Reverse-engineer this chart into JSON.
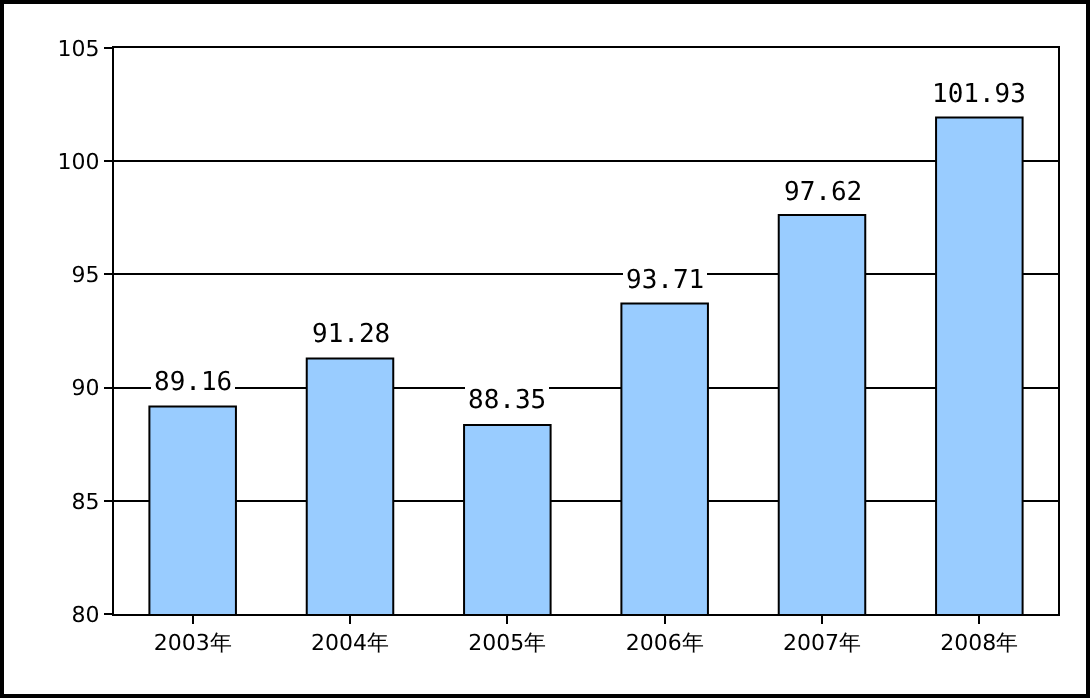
{
  "chart_data": {
    "type": "bar",
    "categories": [
      "2003年",
      "2004年",
      "2005年",
      "2006年",
      "2007年",
      "2008年"
    ],
    "values": [
      89.16,
      91.28,
      88.35,
      93.71,
      97.62,
      101.93
    ],
    "color": "#99ccff",
    "ylim": [
      80,
      105
    ],
    "yticks": [
      80,
      85,
      90,
      95,
      100,
      105
    ],
    "grid": "y",
    "data_labels": true
  }
}
